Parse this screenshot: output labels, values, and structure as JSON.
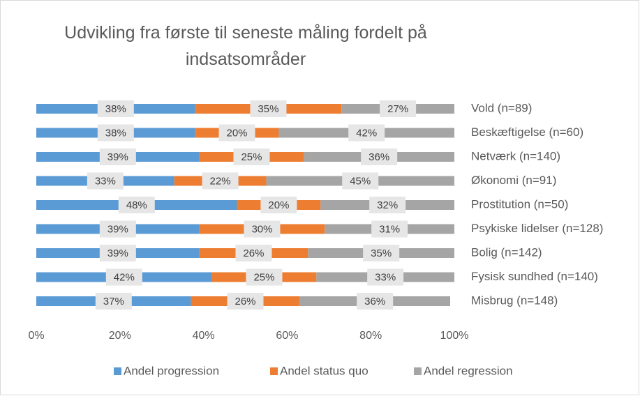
{
  "chart_data": {
    "type": "stacked_barh",
    "title": "Udvikling fra første til seneste måling fordelt på indsatsområder",
    "categories": [
      "Vold (n=89)",
      "Beskæftigelse (n=60)",
      "Netværk (n=140)",
      "Økonomi (n=91)",
      "Prostitution (n=50)",
      "Psykiske lidelser (n=128)",
      "Bolig (n=142)",
      "Fysisk sundhed (n=140)",
      "Misbrug (n=148)"
    ],
    "series": [
      {
        "name": "Andel progression",
        "color": "#5b9bd5",
        "values": [
          38,
          38,
          39,
          33,
          48,
          39,
          39,
          42,
          37
        ],
        "value_labels": [
          "38%",
          "38%",
          "39%",
          "33%",
          "48%",
          "39%",
          "39%",
          "42%",
          "37%"
        ]
      },
      {
        "name": "Andel status quo",
        "color": "#ed7d31",
        "values": [
          35,
          20,
          25,
          22,
          20,
          30,
          26,
          25,
          26
        ],
        "value_labels": [
          "35%",
          "20%",
          "25%",
          "22%",
          "20%",
          "30%",
          "26%",
          "25%",
          "26%"
        ]
      },
      {
        "name": "Andel regression",
        "color": "#a5a5a5",
        "values": [
          27,
          42,
          36,
          45,
          32,
          31,
          35,
          33,
          36
        ],
        "value_labels": [
          "27%",
          "42%",
          "36%",
          "45%",
          "32%",
          "31%",
          "35%",
          "33%",
          "36%"
        ]
      }
    ],
    "xlim": [
      0,
      100
    ],
    "xticks": [
      {
        "value": 0,
        "label": "0%"
      },
      {
        "value": 20,
        "label": "20%"
      },
      {
        "value": 40,
        "label": "40%"
      },
      {
        "value": 60,
        "label": "60%"
      },
      {
        "value": 80,
        "label": "80%"
      },
      {
        "value": 100,
        "label": "100%"
      }
    ],
    "legend": "bottom"
  }
}
